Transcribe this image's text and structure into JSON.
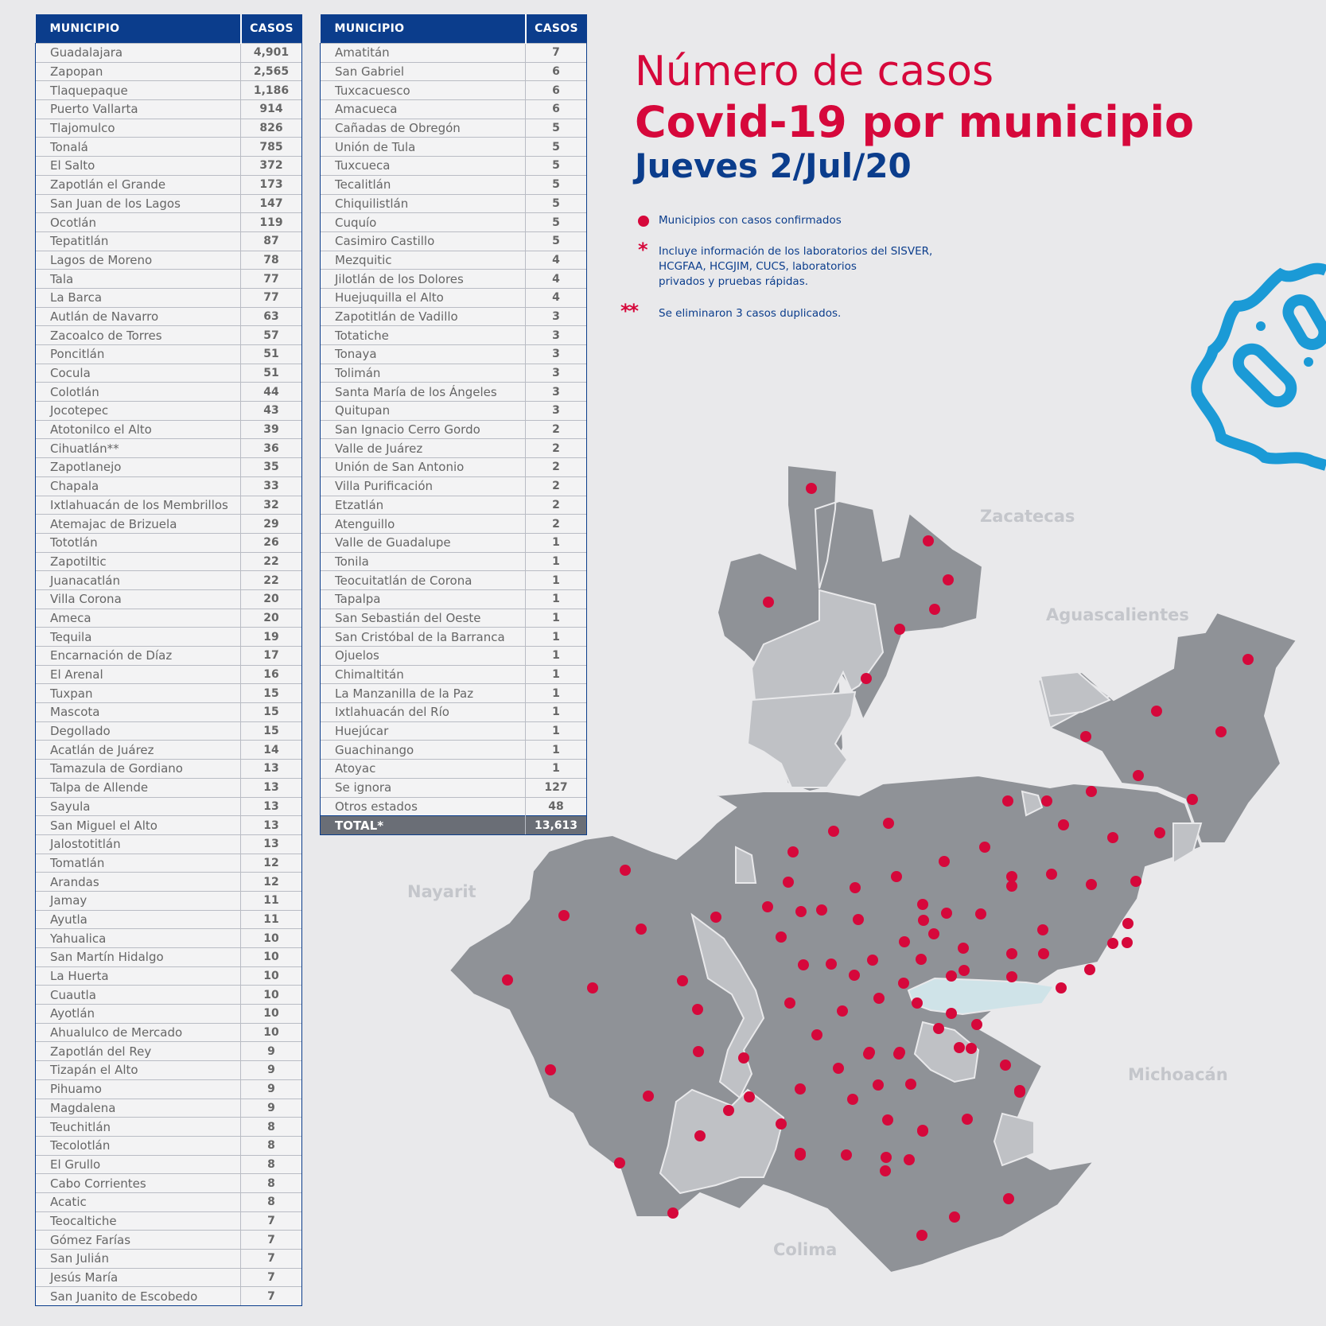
{
  "title": {
    "line1": "Número de casos",
    "line2": "Covid-19 por municipio",
    "line3": "Jueves 2/Jul/20"
  },
  "legend": {
    "confirmed": "Municipios con casos confirmados",
    "note1_line1": "Incluye información de los laboratorios del SISVER,",
    "note1_line2": "HCGFAA, HCGJIM, CUCS, laboratorios",
    "note1_line3": "privados y pruebas rápidas.",
    "note2": "Se eliminaron 3 casos duplicados.",
    "marker_color": "#d6083b"
  },
  "table": {
    "header_municipio": "MUNICIPIO",
    "header_casos": "CASOS",
    "left_rows": [
      [
        "Guadalajara",
        "4,901"
      ],
      [
        "Zapopan",
        "2,565"
      ],
      [
        "Tlaquepaque",
        "1,186"
      ],
      [
        "Puerto Vallarta",
        "914"
      ],
      [
        "Tlajomulco",
        "826"
      ],
      [
        "Tonalá",
        "785"
      ],
      [
        "El Salto",
        "372"
      ],
      [
        "Zapotlán el Grande",
        "173"
      ],
      [
        "San Juan de los Lagos",
        "147"
      ],
      [
        "Ocotlán",
        "119"
      ],
      [
        "Tepatitlán",
        "87"
      ],
      [
        "Lagos de Moreno",
        "78"
      ],
      [
        "Tala",
        "77"
      ],
      [
        "La Barca",
        "77"
      ],
      [
        "Autlán de Navarro",
        "63"
      ],
      [
        "Zacoalco de Torres",
        "57"
      ],
      [
        "Poncitlán",
        "51"
      ],
      [
        "Cocula",
        "51"
      ],
      [
        "Colotlán",
        "44"
      ],
      [
        "Jocotepec",
        "43"
      ],
      [
        "Atotonilco el Alto",
        "39"
      ],
      [
        "Cihuatlán**",
        "36"
      ],
      [
        "Zapotlanejo",
        "35"
      ],
      [
        "Chapala",
        "33"
      ],
      [
        "Ixtlahuacán de los Membrillos",
        "32"
      ],
      [
        "Atemajac de Brizuela",
        "29"
      ],
      [
        "Tototlán",
        "26"
      ],
      [
        "Zapotiltic",
        "22"
      ],
      [
        "Juanacatlán",
        "22"
      ],
      [
        "Villa Corona",
        "20"
      ],
      [
        "Ameca",
        "20"
      ],
      [
        "Tequila",
        "19"
      ],
      [
        "Encarnación de Díaz",
        "17"
      ],
      [
        "El Arenal",
        "16"
      ],
      [
        "Tuxpan",
        "15"
      ],
      [
        "Mascota",
        "15"
      ],
      [
        "Degollado",
        "15"
      ],
      [
        "Acatlán de Juárez",
        "14"
      ],
      [
        "Tamazula de Gordiano",
        "13"
      ],
      [
        "Talpa de Allende",
        "13"
      ],
      [
        "Sayula",
        "13"
      ],
      [
        "San Miguel el Alto",
        "13"
      ],
      [
        "Jalostotitlán",
        "13"
      ],
      [
        "Tomatlán",
        "12"
      ],
      [
        "Arandas",
        "12"
      ],
      [
        "Jamay",
        "11"
      ],
      [
        "Ayutla",
        "11"
      ],
      [
        "Yahualica",
        "10"
      ],
      [
        "San Martín Hidalgo",
        "10"
      ],
      [
        "La Huerta",
        "10"
      ],
      [
        "Cuautla",
        "10"
      ],
      [
        "Ayotlán",
        "10"
      ],
      [
        "Ahualulco de Mercado",
        "10"
      ],
      [
        "Zapotlán del Rey",
        "9"
      ],
      [
        "Tizapán el Alto",
        "9"
      ],
      [
        "Pihuamo",
        "9"
      ],
      [
        "Magdalena",
        "9"
      ],
      [
        "Teuchitlán",
        "8"
      ],
      [
        "Tecolotlán",
        "8"
      ],
      [
        "El Grullo",
        "8"
      ],
      [
        "Cabo Corrientes",
        "8"
      ],
      [
        "Acatic",
        "8"
      ],
      [
        "Teocaltiche",
        "7"
      ],
      [
        "Gómez Farías",
        "7"
      ],
      [
        "San Julián",
        "7"
      ],
      [
        "Jesús María",
        "7"
      ],
      [
        "San Juanito de Escobedo",
        "7"
      ]
    ],
    "right_rows": [
      [
        "Amatitán",
        "7"
      ],
      [
        "San Gabriel",
        "6"
      ],
      [
        "Tuxcacuesco",
        "6"
      ],
      [
        "Amacueca",
        "6"
      ],
      [
        "Cañadas de Obregón",
        "5"
      ],
      [
        "Unión de Tula",
        "5"
      ],
      [
        "Tuxcueca",
        "5"
      ],
      [
        "Tecalitlán",
        "5"
      ],
      [
        "Chiquilistlán",
        "5"
      ],
      [
        "Cuquío",
        "5"
      ],
      [
        "Casimiro Castillo",
        "5"
      ],
      [
        "Mezquitic",
        "4"
      ],
      [
        "Jilotlán de los Dolores",
        "4"
      ],
      [
        "Huejuquilla el Alto",
        "4"
      ],
      [
        "Zapotitlán de Vadillo",
        "3"
      ],
      [
        "Totatiche",
        "3"
      ],
      [
        "Tonaya",
        "3"
      ],
      [
        "Tolimán",
        "3"
      ],
      [
        "Santa María de los Ángeles",
        "3"
      ],
      [
        "Quitupan",
        "3"
      ],
      [
        "San Ignacio Cerro Gordo",
        "2"
      ],
      [
        "Valle de Juárez",
        "2"
      ],
      [
        "Unión de San Antonio",
        "2"
      ],
      [
        "Villa Purificación",
        "2"
      ],
      [
        "Etzatlán",
        "2"
      ],
      [
        "Atenguillo",
        "2"
      ],
      [
        "Valle de Guadalupe",
        "1"
      ],
      [
        "Tonila",
        "1"
      ],
      [
        "Teocuitatlán de Corona",
        "1"
      ],
      [
        "Tapalpa",
        "1"
      ],
      [
        "San Sebastián del Oeste",
        "1"
      ],
      [
        "San Cristóbal de la Barranca",
        "1"
      ],
      [
        "Ojuelos",
        "1"
      ],
      [
        "Chimaltitán",
        "1"
      ],
      [
        "La Manzanilla de la Paz",
        "1"
      ],
      [
        "Ixtlahuacán del Río",
        "1"
      ],
      [
        "Huejúcar",
        "1"
      ],
      [
        "Guachinango",
        "1"
      ],
      [
        "Atoyac",
        "1"
      ],
      [
        "Se ignora",
        "127"
      ],
      [
        "Otros estados",
        "48"
      ]
    ],
    "total_label": "TOTAL*",
    "total_value": "13,613"
  },
  "map": {
    "neighbors": [
      "Zacatecas",
      "Aguascalientes",
      "Nayarit",
      "Michoacán",
      "Colima"
    ],
    "colors": {
      "municipio": "#8f9297",
      "no_cases": "#bfc1c5",
      "lake": "#cfe3e8",
      "dot": "#d6083b",
      "badge": "#1b9ad6"
    }
  }
}
